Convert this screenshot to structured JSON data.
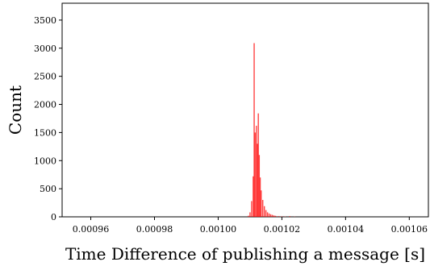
{
  "chart_data": {
    "type": "bar",
    "title": "",
    "xlabel": "Time Difference of publishing a message [s]",
    "ylabel": "Count",
    "xlim": [
      0.000951,
      0.001066
    ],
    "ylim": [
      0,
      3800
    ],
    "x_ticks": [
      0.00096,
      0.00098,
      0.001,
      0.00102,
      0.00104,
      0.00106
    ],
    "x_tick_labels": [
      "0.00096",
      "0.00098",
      "0.00100",
      "0.00102",
      "0.00104",
      "0.00106"
    ],
    "y_ticks": [
      0,
      500,
      1000,
      1500,
      2000,
      2500,
      3000,
      3500
    ],
    "y_tick_labels": [
      "0",
      "500",
      "1000",
      "1500",
      "2000",
      "2500",
      "3000",
      "3500"
    ],
    "grid": false,
    "legend": "none",
    "bar_color": "#ff0000",
    "bar_opacity": 0.75,
    "bins": [
      {
        "x": 0.0010095,
        "value": 20
      },
      {
        "x": 0.00101,
        "value": 80
      },
      {
        "x": 0.0010105,
        "value": 280
      },
      {
        "x": 0.001011,
        "value": 720
      },
      {
        "x": 0.0010113,
        "value": 3090
      },
      {
        "x": 0.0010116,
        "value": 1500
      },
      {
        "x": 0.001012,
        "value": 1620
      },
      {
        "x": 0.0010123,
        "value": 1300
      },
      {
        "x": 0.0010126,
        "value": 1840
      },
      {
        "x": 0.0010129,
        "value": 1100
      },
      {
        "x": 0.0010132,
        "value": 700
      },
      {
        "x": 0.0010135,
        "value": 470
      },
      {
        "x": 0.001014,
        "value": 300
      },
      {
        "x": 0.0010145,
        "value": 190
      },
      {
        "x": 0.001015,
        "value": 120
      },
      {
        "x": 0.0010155,
        "value": 80
      },
      {
        "x": 0.001016,
        "value": 60
      },
      {
        "x": 0.0010165,
        "value": 45
      },
      {
        "x": 0.001017,
        "value": 35
      },
      {
        "x": 0.0010175,
        "value": 25
      },
      {
        "x": 0.001018,
        "value": 18
      },
      {
        "x": 0.001019,
        "value": 12
      },
      {
        "x": 0.00102,
        "value": 8
      },
      {
        "x": 0.001021,
        "value": 6
      },
      {
        "x": 0.0010225,
        "value": 12
      },
      {
        "x": 0.001024,
        "value": 4
      }
    ]
  }
}
